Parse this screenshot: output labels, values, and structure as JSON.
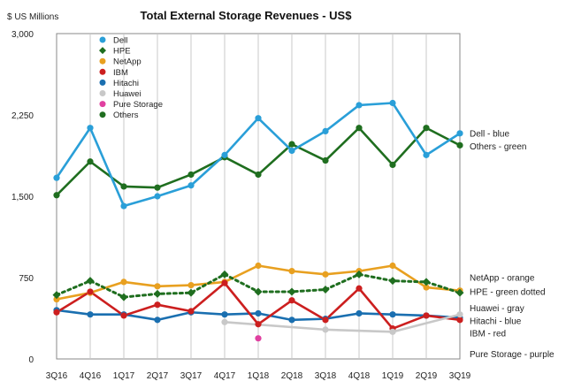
{
  "chart_data": {
    "type": "line",
    "title": "Total External Storage Revenues - US$",
    "ylabel": "$ US Millions",
    "xlabel": "",
    "ylim": [
      0,
      3000
    ],
    "yticks": [
      "0",
      "750",
      "1,500",
      "2,250",
      "3,000"
    ],
    "ytick_values": [
      0,
      750,
      1500,
      2250,
      3000
    ],
    "categories": [
      "3Q16",
      "4Q16",
      "1Q17",
      "2Q17",
      "3Q17",
      "4Q17",
      "1Q18",
      "2Q18",
      "3Q18",
      "4Q18",
      "1Q19",
      "2Q19",
      "3Q19"
    ],
    "grid": "vertical",
    "legend_placement": "top-left",
    "series": [
      {
        "name": "Dell",
        "color": "#2a9fd8",
        "style": "solid",
        "marker": "circle",
        "values": [
          1670,
          2130,
          1410,
          1500,
          1600,
          1880,
          2220,
          1920,
          2100,
          2340,
          2360,
          1880,
          2080
        ]
      },
      {
        "name": "HPE",
        "color": "#1f6e1f",
        "style": "dotted",
        "marker": "diamond",
        "values": [
          590,
          720,
          570,
          600,
          610,
          780,
          620,
          620,
          640,
          780,
          720,
          710,
          610
        ]
      },
      {
        "name": "NetApp",
        "color": "#e8a020",
        "style": "solid",
        "marker": "circle",
        "values": [
          550,
          610,
          710,
          670,
          680,
          710,
          860,
          810,
          780,
          810,
          860,
          660,
          630
        ]
      },
      {
        "name": "IBM",
        "color": "#cc1f1f",
        "style": "solid",
        "marker": "circle",
        "values": [
          430,
          620,
          400,
          500,
          440,
          700,
          320,
          540,
          360,
          650,
          280,
          400,
          360
        ]
      },
      {
        "name": "Hitachi",
        "color": "#1a6fb0",
        "style": "solid",
        "marker": "circle",
        "values": [
          450,
          410,
          410,
          360,
          430,
          410,
          420,
          360,
          370,
          420,
          410,
          400,
          380
        ]
      },
      {
        "name": "Huawei",
        "color": "#c8c8c8",
        "style": "solid",
        "marker": "circle",
        "values": [
          null,
          null,
          null,
          null,
          null,
          340,
          null,
          null,
          270,
          null,
          250,
          null,
          410
        ]
      },
      {
        "name": "Pure Storage",
        "color": "#e040a0",
        "style": "none",
        "marker": "circle",
        "values": [
          null,
          null,
          null,
          null,
          null,
          null,
          190,
          null,
          null,
          null,
          null,
          null,
          null
        ]
      },
      {
        "name": "Others",
        "color": "#1f6e1f",
        "style": "solid",
        "marker": "circle",
        "values": [
          1510,
          1820,
          1590,
          1580,
          1700,
          1860,
          1700,
          1980,
          1830,
          2130,
          1790,
          2130,
          1970
        ]
      }
    ],
    "annotations": [
      {
        "text": "Dell - blue",
        "at_value": 2080
      },
      {
        "text": "Others - green",
        "at_value": 1960
      },
      {
        "text": "NetApp - orange",
        "at_value": 750
      },
      {
        "text": "HPE - green dotted",
        "at_value": 620
      },
      {
        "text": "Huawei - gray",
        "at_value": 470
      },
      {
        "text": "Hitachi - blue",
        "at_value": 350
      },
      {
        "text": "IBM - red",
        "at_value": 235
      },
      {
        "text": "Pure Storage - purple",
        "at_value": 45
      }
    ]
  }
}
